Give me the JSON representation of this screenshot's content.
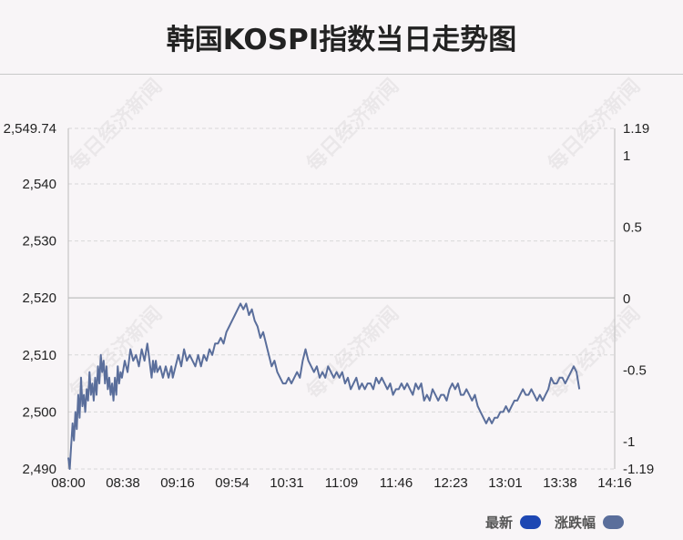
{
  "chart_data": {
    "type": "line",
    "title": "韩国KOSPI指数当日走势图",
    "x_ticks": [
      "08:00",
      "08:38",
      "09:16",
      "09:54",
      "10:31",
      "11:09",
      "11:46",
      "12:23",
      "13:01",
      "13:38",
      "14:16"
    ],
    "y_left_ticks": [
      "2,549.74",
      "2,540",
      "2,530",
      "2,520",
      "2,510",
      "2,500",
      "2,490"
    ],
    "y_right_ticks": [
      "1.19",
      "1",
      "0.5",
      "0",
      "-0.5",
      "-1",
      "-1.19"
    ],
    "y_left_range": [
      2490,
      2549.74
    ],
    "y_right_range": [
      -1.19,
      1.19
    ],
    "reference_value": 2520,
    "x_range_minutes": [
      0,
      387
    ],
    "series": [
      {
        "name": "最新",
        "color": "#1d47b3",
        "points": [
          [
            0,
            2492
          ],
          [
            1,
            2490
          ],
          [
            2,
            2494
          ],
          [
            3,
            2498
          ],
          [
            4,
            2495
          ],
          [
            5,
            2500
          ],
          [
            6,
            2497
          ],
          [
            7,
            2503
          ],
          [
            8,
            2499
          ],
          [
            9,
            2506
          ],
          [
            10,
            2501
          ],
          [
            11,
            2503
          ],
          [
            12,
            2500
          ],
          [
            13,
            2504
          ],
          [
            14,
            2502
          ],
          [
            15,
            2507
          ],
          [
            16,
            2503
          ],
          [
            17,
            2505
          ],
          [
            18,
            2502
          ],
          [
            19,
            2506
          ],
          [
            20,
            2503
          ],
          [
            21,
            2508
          ],
          [
            22,
            2505
          ],
          [
            23,
            2510
          ],
          [
            24,
            2507
          ],
          [
            25,
            2509
          ],
          [
            26,
            2505
          ],
          [
            27,
            2508
          ],
          [
            28,
            2504
          ],
          [
            29,
            2506
          ],
          [
            30,
            2503
          ],
          [
            31,
            2505
          ],
          [
            32,
            2502
          ],
          [
            33,
            2506
          ],
          [
            34,
            2503
          ],
          [
            35,
            2508
          ],
          [
            36,
            2505
          ],
          [
            37,
            2507
          ],
          [
            38,
            2506
          ],
          [
            40,
            2509
          ],
          [
            42,
            2507
          ],
          [
            44,
            2511
          ],
          [
            46,
            2509
          ],
          [
            48,
            2510
          ],
          [
            50,
            2508
          ],
          [
            52,
            2511
          ],
          [
            54,
            2509
          ],
          [
            56,
            2512
          ],
          [
            57,
            2510
          ],
          [
            58,
            2508
          ],
          [
            59,
            2506
          ],
          [
            60,
            2509
          ],
          [
            61,
            2507
          ],
          [
            62,
            2509
          ],
          [
            63,
            2507
          ],
          [
            65,
            2508
          ],
          [
            67,
            2506
          ],
          [
            69,
            2508
          ],
          [
            71,
            2506
          ],
          [
            73,
            2508
          ],
          [
            74,
            2506
          ],
          [
            76,
            2508
          ],
          [
            78,
            2510
          ],
          [
            80,
            2508
          ],
          [
            82,
            2511
          ],
          [
            84,
            2509
          ],
          [
            86,
            2510
          ],
          [
            88,
            2509
          ],
          [
            90,
            2508
          ],
          [
            92,
            2510
          ],
          [
            94,
            2508
          ],
          [
            96,
            2510
          ],
          [
            98,
            2509
          ],
          [
            100,
            2511
          ],
          [
            102,
            2510
          ],
          [
            104,
            2512
          ],
          [
            106,
            2512
          ],
          [
            108,
            2513
          ],
          [
            110,
            2512
          ],
          [
            112,
            2514
          ],
          [
            114,
            2515
          ],
          [
            116,
            2516
          ],
          [
            118,
            2517
          ],
          [
            120,
            2518
          ],
          [
            122,
            2519
          ],
          [
            124,
            2518
          ],
          [
            126,
            2519
          ],
          [
            128,
            2517
          ],
          [
            130,
            2518
          ],
          [
            132,
            2516
          ],
          [
            134,
            2515
          ],
          [
            136,
            2513
          ],
          [
            138,
            2514
          ],
          [
            140,
            2512
          ],
          [
            142,
            2510
          ],
          [
            144,
            2508
          ],
          [
            146,
            2509
          ],
          [
            148,
            2507
          ],
          [
            150,
            2506
          ],
          [
            152,
            2505
          ],
          [
            154,
            2505
          ],
          [
            156,
            2506
          ],
          [
            158,
            2505
          ],
          [
            160,
            2506
          ],
          [
            162,
            2507
          ],
          [
            164,
            2506
          ],
          [
            166,
            2509
          ],
          [
            168,
            2511
          ],
          [
            170,
            2509
          ],
          [
            172,
            2508
          ],
          [
            174,
            2507
          ],
          [
            176,
            2508
          ],
          [
            178,
            2506
          ],
          [
            180,
            2507
          ],
          [
            182,
            2506
          ],
          [
            184,
            2508
          ],
          [
            186,
            2507
          ],
          [
            188,
            2506
          ],
          [
            190,
            2507
          ],
          [
            192,
            2506
          ],
          [
            194,
            2507
          ],
          [
            196,
            2505
          ],
          [
            198,
            2506
          ],
          [
            200,
            2504
          ],
          [
            202,
            2505
          ],
          [
            204,
            2506
          ],
          [
            206,
            2504
          ],
          [
            208,
            2505
          ],
          [
            210,
            2504
          ],
          [
            212,
            2505
          ],
          [
            214,
            2505
          ],
          [
            216,
            2504
          ],
          [
            218,
            2506
          ],
          [
            220,
            2505
          ],
          [
            222,
            2506
          ],
          [
            224,
            2505
          ],
          [
            226,
            2504
          ],
          [
            228,
            2505
          ],
          [
            230,
            2503
          ],
          [
            232,
            2504
          ],
          [
            234,
            2504
          ],
          [
            236,
            2505
          ],
          [
            238,
            2504
          ],
          [
            240,
            2505
          ],
          [
            242,
            2504
          ],
          [
            244,
            2503
          ],
          [
            246,
            2505
          ],
          [
            248,
            2504
          ],
          [
            250,
            2505
          ],
          [
            252,
            2502
          ],
          [
            254,
            2503
          ],
          [
            256,
            2502
          ],
          [
            258,
            2504
          ],
          [
            260,
            2503
          ],
          [
            262,
            2502
          ],
          [
            264,
            2503
          ],
          [
            266,
            2503
          ],
          [
            268,
            2502
          ],
          [
            270,
            2504
          ],
          [
            272,
            2505
          ],
          [
            274,
            2504
          ],
          [
            276,
            2505
          ],
          [
            278,
            2503
          ],
          [
            280,
            2503
          ],
          [
            282,
            2504
          ],
          [
            284,
            2503
          ],
          [
            286,
            2502
          ],
          [
            288,
            2503
          ],
          [
            290,
            2501
          ],
          [
            292,
            2500
          ],
          [
            294,
            2499
          ],
          [
            296,
            2498
          ],
          [
            298,
            2499
          ],
          [
            300,
            2498
          ],
          [
            302,
            2499
          ],
          [
            304,
            2499
          ],
          [
            306,
            2500
          ],
          [
            308,
            2500
          ],
          [
            310,
            2501
          ],
          [
            312,
            2500
          ],
          [
            314,
            2501
          ],
          [
            316,
            2502
          ],
          [
            318,
            2502
          ],
          [
            320,
            2503
          ],
          [
            322,
            2504
          ],
          [
            324,
            2503
          ],
          [
            326,
            2503
          ],
          [
            328,
            2504
          ],
          [
            330,
            2503
          ],
          [
            332,
            2502
          ],
          [
            334,
            2503
          ],
          [
            336,
            2502
          ],
          [
            338,
            2503
          ],
          [
            340,
            2504
          ],
          [
            342,
            2506
          ],
          [
            344,
            2505
          ],
          [
            346,
            2505
          ],
          [
            348,
            2506
          ],
          [
            350,
            2506
          ],
          [
            352,
            2505
          ],
          [
            354,
            2506
          ],
          [
            356,
            2507
          ],
          [
            358,
            2508
          ],
          [
            360,
            2507
          ],
          [
            362,
            2504
          ]
        ]
      },
      {
        "name": "涨跌幅",
        "color": "#5a6e9b"
      }
    ]
  },
  "watermark": "每日经济新闻",
  "legend": [
    {
      "label": "最新",
      "color": "#1d47b3"
    },
    {
      "label": "涨跌幅",
      "color": "#5a6e9b"
    }
  ]
}
